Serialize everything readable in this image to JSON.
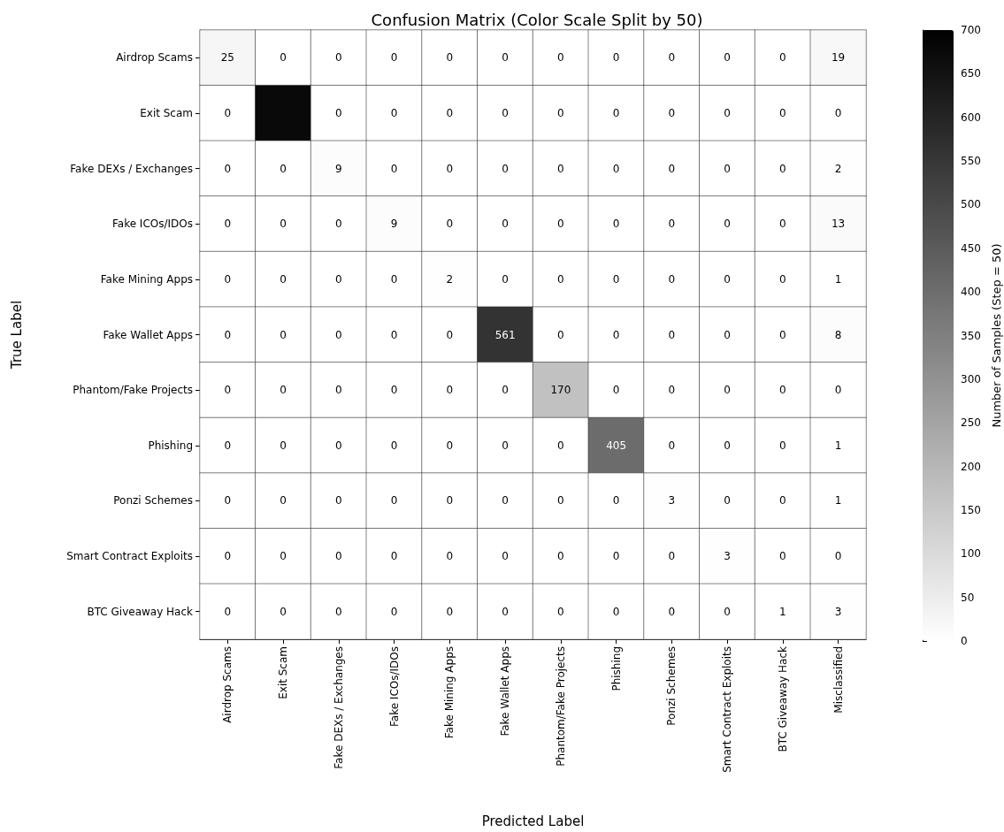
{
  "chart_data": {
    "type": "heatmap",
    "title": "Confusion Matrix (Color Scale Split by 50)",
    "xlabel": "Predicted Label",
    "ylabel": "True Label",
    "clabel": "Number of Samples (Step = 50)",
    "categories": [
      "Airdrop Scams",
      "Exit Scam",
      "Fake DEXs / Exchanges",
      "Fake ICOs/IDOs",
      "Fake Mining Apps",
      "Fake Wallet Apps",
      "Phantom/Fake Projects",
      "Phishing",
      "Ponzi Schemes",
      "Smart Contract Exploits",
      "BTC Giveaway Hack",
      "Misclassified"
    ],
    "y_categories": [
      "Airdrop Scams",
      "Exit Scam",
      "Fake DEXs / Exchanges",
      "Fake ICOs/IDOs",
      "Fake Mining Apps",
      "Fake Wallet Apps",
      "Phantom/Fake Projects",
      "Phishing",
      "Ponzi Schemes",
      "Smart Contract Exploits",
      "BTC Giveaway Hack"
    ],
    "cells": [
      [
        25,
        0,
        0,
        0,
        0,
        0,
        0,
        0,
        0,
        0,
        0,
        19
      ],
      [
        0,
        675,
        0,
        0,
        0,
        0,
        0,
        0,
        0,
        0,
        0,
        0
      ],
      [
        0,
        0,
        9,
        0,
        0,
        0,
        0,
        0,
        0,
        0,
        0,
        2
      ],
      [
        0,
        0,
        0,
        9,
        0,
        0,
        0,
        0,
        0,
        0,
        0,
        13
      ],
      [
        0,
        0,
        0,
        0,
        2,
        0,
        0,
        0,
        0,
        0,
        0,
        1
      ],
      [
        0,
        0,
        0,
        0,
        0,
        561,
        0,
        0,
        0,
        0,
        0,
        8
      ],
      [
        0,
        0,
        0,
        0,
        0,
        0,
        170,
        0,
        0,
        0,
        0,
        0
      ],
      [
        0,
        0,
        0,
        0,
        0,
        0,
        0,
        405,
        0,
        0,
        0,
        1
      ],
      [
        0,
        0,
        0,
        0,
        0,
        0,
        0,
        0,
        3,
        0,
        0,
        1
      ],
      [
        0,
        0,
        0,
        0,
        0,
        0,
        0,
        0,
        0,
        3,
        0,
        0
      ],
      [
        0,
        0,
        0,
        0,
        0,
        0,
        0,
        0,
        0,
        0,
        1,
        3
      ]
    ],
    "cell_labels": [
      [
        "25",
        "0",
        "0",
        "0",
        "0",
        "0",
        "0",
        "0",
        "0",
        "0",
        "0",
        "19"
      ],
      [
        "0",
        null,
        "0",
        "0",
        "0",
        "0",
        "0",
        "0",
        "0",
        "0",
        "0",
        "0"
      ],
      [
        "0",
        "0",
        "9",
        "0",
        "0",
        "0",
        "0",
        "0",
        "0",
        "0",
        "0",
        "2"
      ],
      [
        "0",
        "0",
        "0",
        "9",
        "0",
        "0",
        "0",
        "0",
        "0",
        "0",
        "0",
        "13"
      ],
      [
        "0",
        "0",
        "0",
        "0",
        "2",
        "0",
        "0",
        "0",
        "0",
        "0",
        "0",
        "1"
      ],
      [
        "0",
        "0",
        "0",
        "0",
        "0",
        "561",
        "0",
        "0",
        "0",
        "0",
        "0",
        "8"
      ],
      [
        "0",
        "0",
        "0",
        "0",
        "0",
        "0",
        "170",
        "0",
        "0",
        "0",
        "0",
        "0"
      ],
      [
        "0",
        "0",
        "0",
        "0",
        "0",
        "0",
        "0",
        "405",
        "0",
        "0",
        "0",
        "1"
      ],
      [
        "0",
        "0",
        "0",
        "0",
        "0",
        "0",
        "0",
        "0",
        "3",
        "0",
        "0",
        "1"
      ],
      [
        "0",
        "0",
        "0",
        "0",
        "0",
        "0",
        "0",
        "0",
        "0",
        "3",
        "0",
        "0"
      ],
      [
        "0",
        "0",
        "0",
        "0",
        "0",
        "0",
        "0",
        "0",
        "0",
        "0",
        "1",
        "3"
      ]
    ],
    "clim": [
      0,
      700
    ],
    "cticks": [
      0,
      50,
      100,
      150,
      200,
      250,
      300,
      350,
      400,
      450,
      500,
      550,
      600,
      650,
      700
    ]
  }
}
